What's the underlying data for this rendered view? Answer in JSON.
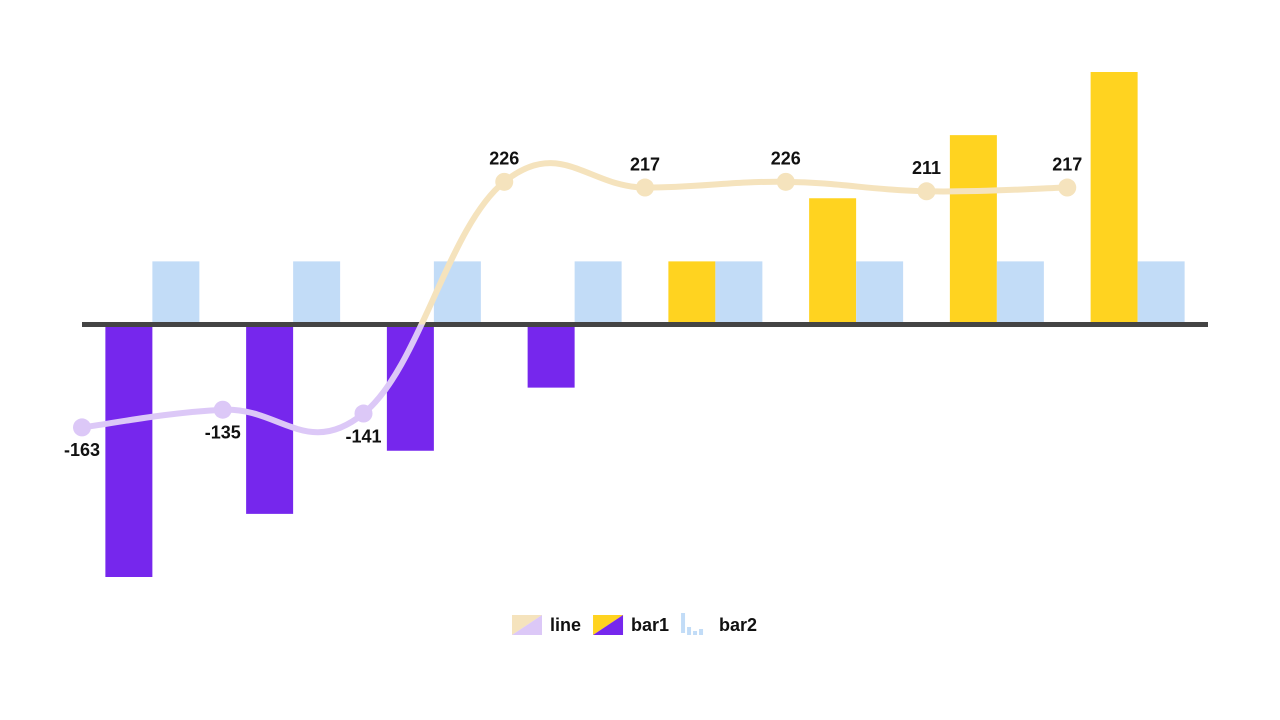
{
  "chart_data": {
    "type": "bar-line",
    "series": [
      {
        "name": "line",
        "type": "line",
        "color": "#f5e3bd",
        "negative_color": "#dcc8f7",
        "values": [
          -163,
          -135,
          -141,
          226,
          217,
          226,
          211,
          217
        ]
      },
      {
        "name": "bar1",
        "type": "bar",
        "color": "#ffd320",
        "negative_color": "#7627ed",
        "values": [
          -400,
          -300,
          -200,
          -100,
          100,
          200,
          300,
          400
        ]
      },
      {
        "name": "bar2",
        "type": "bar",
        "color": "#c2dcf7",
        "values": [
          100,
          100,
          100,
          100,
          100,
          100,
          100,
          100
        ]
      }
    ]
  }
}
